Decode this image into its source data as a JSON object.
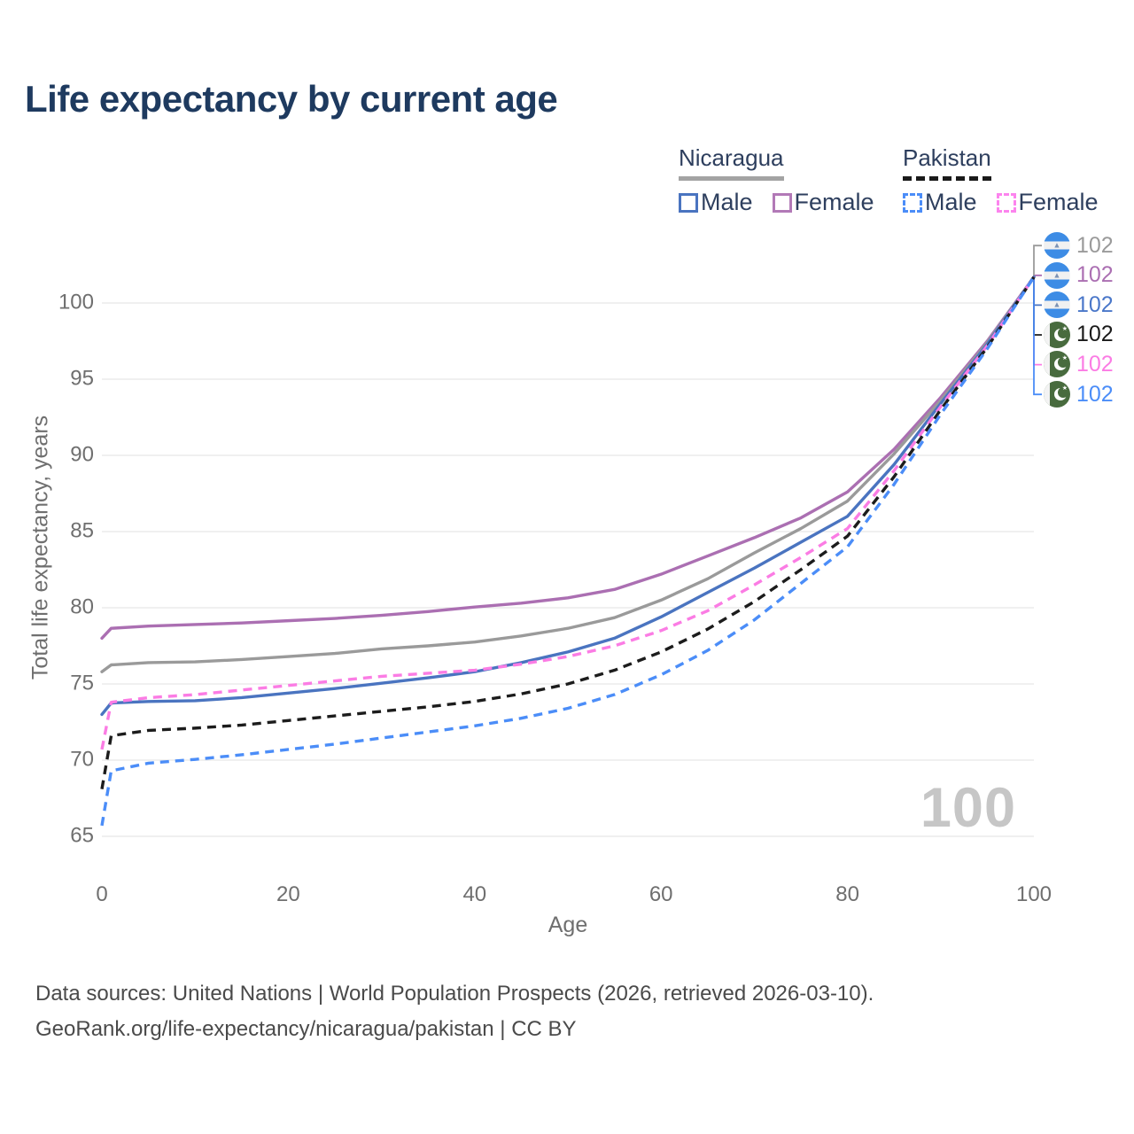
{
  "title": "Life expectancy by current age",
  "legend": {
    "nicaragua": {
      "country": "Nicaragua",
      "male": "Male",
      "female": "Female"
    },
    "pakistan": {
      "country": "Pakistan",
      "male": "Male",
      "female": "Female"
    }
  },
  "watermark": "100",
  "end_labels": [
    {
      "flag": "nicaragua",
      "series": "Nicaragua Both sexes",
      "value": "102",
      "color": "#9a9a9a"
    },
    {
      "flag": "nicaragua",
      "series": "Nicaragua Female",
      "value": "102",
      "color": "#ab6fb2"
    },
    {
      "flag": "nicaragua",
      "series": "Nicaragua Male",
      "value": "102",
      "color": "#4a77c9"
    },
    {
      "flag": "pakistan",
      "series": "Pakistan Both sexes",
      "value": "102",
      "color": "#1a1a1a"
    },
    {
      "flag": "pakistan",
      "series": "Pakistan Female",
      "value": "102",
      "color": "#fb7ce4"
    },
    {
      "flag": "pakistan",
      "series": "Pakistan Male",
      "value": "102",
      "color": "#4b8df8"
    }
  ],
  "footer": {
    "line1": "Data sources: United Nations | World Population Prospects (2026, retrieved 2026-03-10).",
    "line2": "GeoRank.org/life-expectancy/nicaragua/pakistan | CC BY"
  },
  "chart_data": {
    "type": "line",
    "title": "Life expectancy by current age",
    "xlabel": "Age",
    "ylabel": "Total life expectancy, years",
    "xlim": [
      0,
      100
    ],
    "ylim": [
      65,
      102
    ],
    "grid": "horizontal",
    "legend_position": "top-right",
    "xticks": [
      "0",
      "20",
      "40",
      "60",
      "80",
      "100"
    ],
    "yticks": [
      "65",
      "70",
      "75",
      "80",
      "85",
      "90",
      "95",
      "100"
    ],
    "xtick_values": [
      0,
      20,
      40,
      60,
      80,
      100
    ],
    "ytick_values": [
      65,
      70,
      75,
      80,
      85,
      90,
      95,
      100
    ],
    "x": [
      0,
      1,
      5,
      10,
      15,
      20,
      25,
      30,
      35,
      40,
      45,
      50,
      55,
      60,
      65,
      70,
      75,
      80,
      85,
      90,
      95,
      100
    ],
    "series": [
      {
        "name": "Nicaragua Female",
        "country": "Nicaragua",
        "sex": "Female",
        "color": "#ab6fb2",
        "dash": "solid",
        "end_row": 1,
        "values": [
          78.0,
          78.65,
          78.8,
          78.9,
          79.0,
          79.15,
          79.3,
          79.5,
          79.75,
          80.05,
          80.3,
          80.65,
          81.2,
          82.2,
          83.4,
          84.6,
          85.9,
          87.6,
          90.4,
          93.8,
          97.5,
          101.7
        ]
      },
      {
        "name": "Nicaragua Both sexes",
        "country": "Nicaragua",
        "sex": "Both",
        "color": "#9a9a9a",
        "dash": "solid",
        "end_row": 0,
        "values": [
          75.8,
          76.25,
          76.4,
          76.45,
          76.6,
          76.8,
          77.0,
          77.3,
          77.5,
          77.75,
          78.15,
          78.65,
          79.35,
          80.5,
          81.9,
          83.6,
          85.2,
          87.0,
          90.1,
          93.6,
          97.4,
          101.7
        ]
      },
      {
        "name": "Nicaragua Male",
        "country": "Nicaragua",
        "sex": "Male",
        "color": "#4a74c0",
        "dash": "solid",
        "end_row": 2,
        "values": [
          73.0,
          73.75,
          73.85,
          73.9,
          74.1,
          74.4,
          74.7,
          75.05,
          75.4,
          75.8,
          76.4,
          77.1,
          78.0,
          79.4,
          81.0,
          82.6,
          84.3,
          86.0,
          89.4,
          93.4,
          97.3,
          101.7
        ]
      },
      {
        "name": "Pakistan Female",
        "country": "Pakistan",
        "sex": "Female",
        "color": "#fb7ce4",
        "dash": "dashed",
        "end_row": 4,
        "values": [
          70.7,
          73.8,
          74.1,
          74.3,
          74.6,
          74.9,
          75.2,
          75.5,
          75.7,
          75.9,
          76.3,
          76.8,
          77.5,
          78.5,
          79.8,
          81.5,
          83.3,
          85.2,
          89.0,
          93.2,
          97.2,
          101.7
        ]
      },
      {
        "name": "Pakistan Both sexes",
        "country": "Pakistan",
        "sex": "Both",
        "color": "#1c1c1c",
        "dash": "dashed",
        "end_row": 3,
        "values": [
          68.1,
          71.6,
          71.95,
          72.1,
          72.3,
          72.6,
          72.9,
          73.2,
          73.5,
          73.85,
          74.35,
          75.0,
          75.9,
          77.1,
          78.6,
          80.4,
          82.5,
          84.7,
          88.6,
          93.0,
          97.1,
          101.7
        ]
      },
      {
        "name": "Pakistan Male",
        "country": "Pakistan",
        "sex": "Male",
        "color": "#4b8df8",
        "dash": "dashed",
        "end_row": 5,
        "values": [
          65.7,
          69.3,
          69.8,
          70.05,
          70.35,
          70.7,
          71.05,
          71.45,
          71.85,
          72.25,
          72.75,
          73.4,
          74.3,
          75.6,
          77.2,
          79.2,
          81.6,
          84.0,
          88.1,
          92.7,
          97.0,
          101.7
        ]
      }
    ],
    "end_age": 100,
    "end_value_label": "102"
  }
}
